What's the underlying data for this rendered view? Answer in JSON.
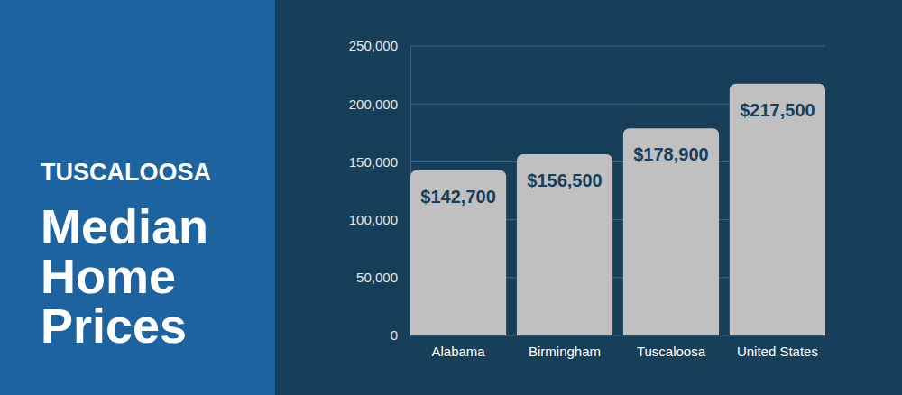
{
  "chart_data": {
    "type": "bar",
    "title": "TUSCALOOSA",
    "subtitle": "Median Home Prices",
    "categories": [
      "Alabama",
      "Birmingham",
      "Tuscaloosa",
      "United States"
    ],
    "values": [
      142700,
      156500,
      178900,
      217500
    ],
    "value_labels": [
      "$142,700",
      "$156,500",
      "$178,900",
      "$217,500"
    ],
    "color": "#c0c0c0",
    "ylim": [
      0,
      250000
    ],
    "yticks": [
      0,
      {
        "value": 50000,
        "label": "50,000"
      },
      {
        "value": 100000,
        "label": "100,000"
      },
      {
        "value": 150000,
        "label": "150,000"
      },
      {
        "value": 200000,
        "label": "200,000"
      },
      {
        "value": 250000,
        "label": "250,000"
      }
    ],
    "grid": true,
    "data_labels": true
  }
}
